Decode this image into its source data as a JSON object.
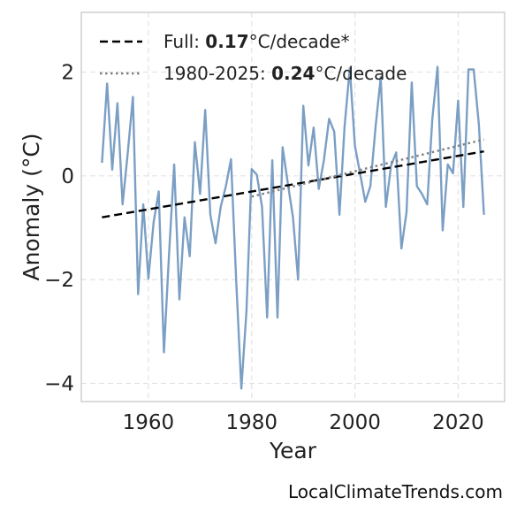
{
  "chart_data": {
    "type": "line",
    "title": "",
    "xlabel": "Year",
    "ylabel": "Anomaly (°C)",
    "xlim": [
      1947,
      2029
    ],
    "ylim": [
      -4.35,
      3.15
    ],
    "xticks": [
      1960,
      1980,
      2000,
      2020
    ],
    "yticks": [
      -4,
      -2,
      0,
      2
    ],
    "ytick_labels": [
      "−4",
      "−2",
      "0",
      "2"
    ],
    "grid": true,
    "legend_position": "top-left",
    "series": [
      {
        "kind": "data",
        "color": "#7b9fc4",
        "x": [
          1951,
          1952,
          1953,
          1954,
          1955,
          1956,
          1957,
          1958,
          1959,
          1960,
          1961,
          1962,
          1963,
          1964,
          1965,
          1966,
          1967,
          1968,
          1969,
          1970,
          1971,
          1972,
          1973,
          1974,
          1975,
          1976,
          1977,
          1978,
          1979,
          1980,
          1981,
          1982,
          1983,
          1984,
          1985,
          1986,
          1987,
          1988,
          1989,
          1990,
          1991,
          1992,
          1993,
          1994,
          1995,
          1996,
          1997,
          1998,
          1999,
          2000,
          2001,
          2002,
          2003,
          2004,
          2005,
          2006,
          2007,
          2008,
          2009,
          2010,
          2011,
          2012,
          2013,
          2014,
          2015,
          2016,
          2017,
          2018,
          2019,
          2020,
          2021,
          2022,
          2023,
          2024,
          2025
        ],
        "y": [
          0.25,
          1.78,
          0.12,
          1.4,
          -0.55,
          0.45,
          1.52,
          -2.28,
          -0.55,
          -1.98,
          -0.9,
          -0.3,
          -3.4,
          -1.5,
          0.22,
          -2.38,
          -0.8,
          -1.55,
          0.65,
          -0.35,
          1.27,
          -0.75,
          -1.3,
          -0.6,
          -0.2,
          0.32,
          -2.0,
          -4.1,
          -2.6,
          0.13,
          0.02,
          -0.6,
          -2.73,
          0.3,
          -2.73,
          0.55,
          -0.15,
          -0.8,
          -2.0,
          1.35,
          0.2,
          0.93,
          -0.25,
          0.3,
          1.1,
          0.85,
          -0.75,
          0.95,
          2.08,
          0.58,
          0.05,
          -0.5,
          -0.2,
          0.95,
          1.9,
          -0.6,
          0.2,
          0.45,
          -1.4,
          -0.7,
          1.8,
          -0.2,
          -0.35,
          -0.55,
          1.1,
          2.1,
          -1.05,
          0.22,
          0.05,
          1.45,
          -0.6,
          2.05,
          2.05,
          1.0,
          -0.75
        ]
      },
      {
        "kind": "trend",
        "name_prefix": "Full: ",
        "rate": "0.17",
        "name_suffix": "°C/decade*",
        "color": "#000000",
        "dash": "dashed",
        "x": [
          1951,
          2025
        ],
        "y": [
          -0.8,
          0.47
        ]
      },
      {
        "kind": "trend",
        "name_prefix": "1980-2025: ",
        "rate": "0.24",
        "name_suffix": "°C/decade",
        "color": "#808080",
        "dash": "dotted",
        "x": [
          1980,
          2025
        ],
        "y": [
          -0.4,
          0.7
        ]
      }
    ]
  },
  "watermark": "LocalClimateTrends.com"
}
